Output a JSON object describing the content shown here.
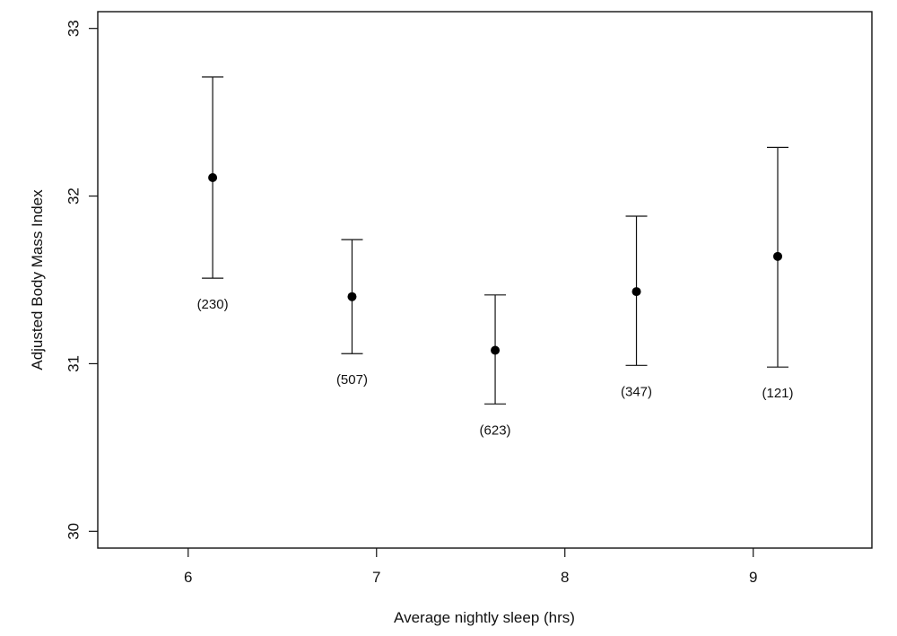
{
  "chart_data": {
    "type": "scatter",
    "xlabel": "Average nightly sleep (hrs)",
    "ylabel": "Adjusted Body Mass Index",
    "xlim": [
      5.52,
      9.63
    ],
    "ylim": [
      29.9,
      33.1
    ],
    "xticks": [
      6,
      7,
      8,
      9
    ],
    "yticks": [
      30,
      31,
      32,
      33
    ],
    "grid": false,
    "legend": "none",
    "points": [
      {
        "x": 6.13,
        "y": 32.11,
        "lower": 31.51,
        "upper": 32.71,
        "n": "(230)"
      },
      {
        "x": 6.87,
        "y": 31.4,
        "lower": 31.06,
        "upper": 31.74,
        "n": "(507)"
      },
      {
        "x": 7.63,
        "y": 31.08,
        "lower": 30.76,
        "upper": 31.41,
        "n": "(623)"
      },
      {
        "x": 8.38,
        "y": 31.43,
        "lower": 30.99,
        "upper": 31.88,
        "n": "(347)"
      },
      {
        "x": 9.13,
        "y": 31.64,
        "lower": 30.98,
        "upper": 32.29,
        "n": "(121)"
      }
    ],
    "colors": {
      "axis": "#111111",
      "point": "#000000",
      "background": "#ffffff"
    }
  }
}
